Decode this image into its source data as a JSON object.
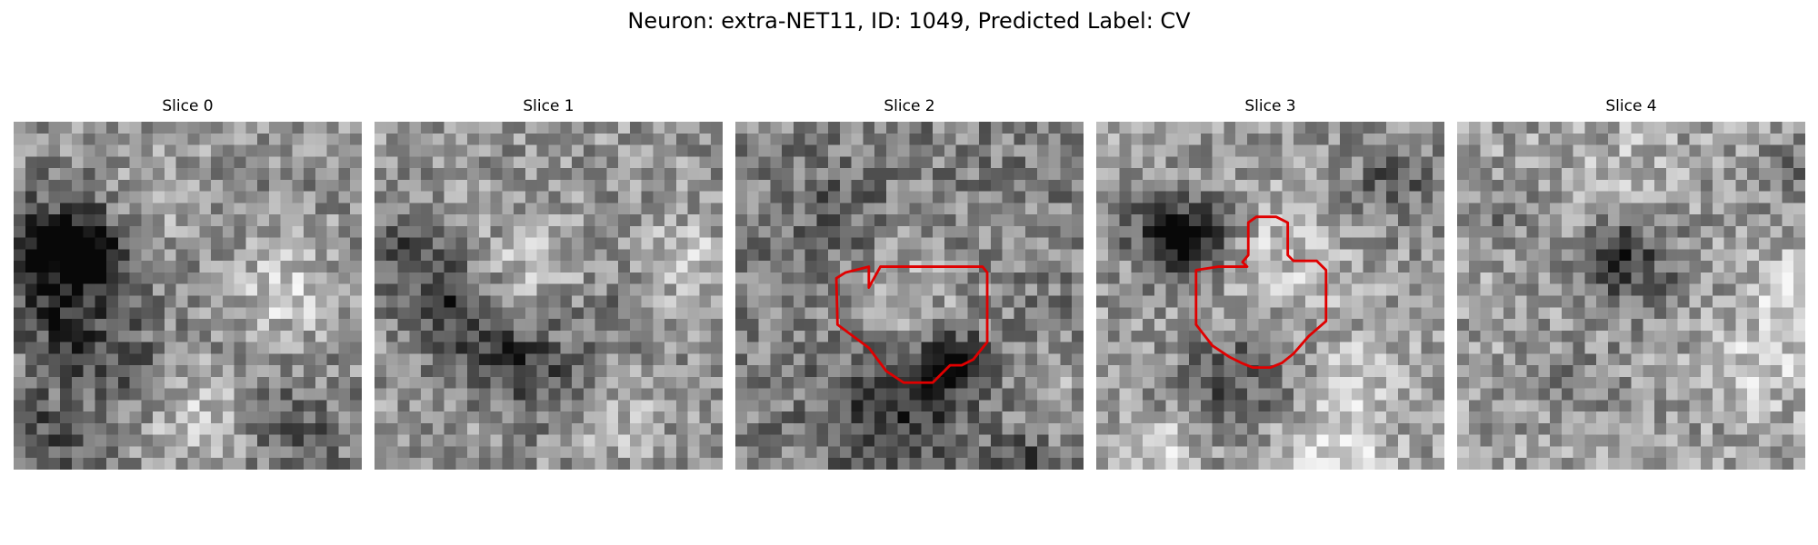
{
  "figure": {
    "title": "Neuron: extra-NET11, ID: 1049, Predicted Label: CV"
  },
  "colors": {
    "contour": "#e00000",
    "background": "#ffffff",
    "text": "#000000"
  },
  "slices": [
    {
      "label": "Slice 0",
      "has_contour": false
    },
    {
      "label": "Slice 1",
      "has_contour": false
    },
    {
      "label": "Slice 2",
      "has_contour": true
    },
    {
      "label": "Slice 3",
      "has_contour": true
    },
    {
      "label": "Slice 4",
      "has_contour": false
    }
  ]
}
